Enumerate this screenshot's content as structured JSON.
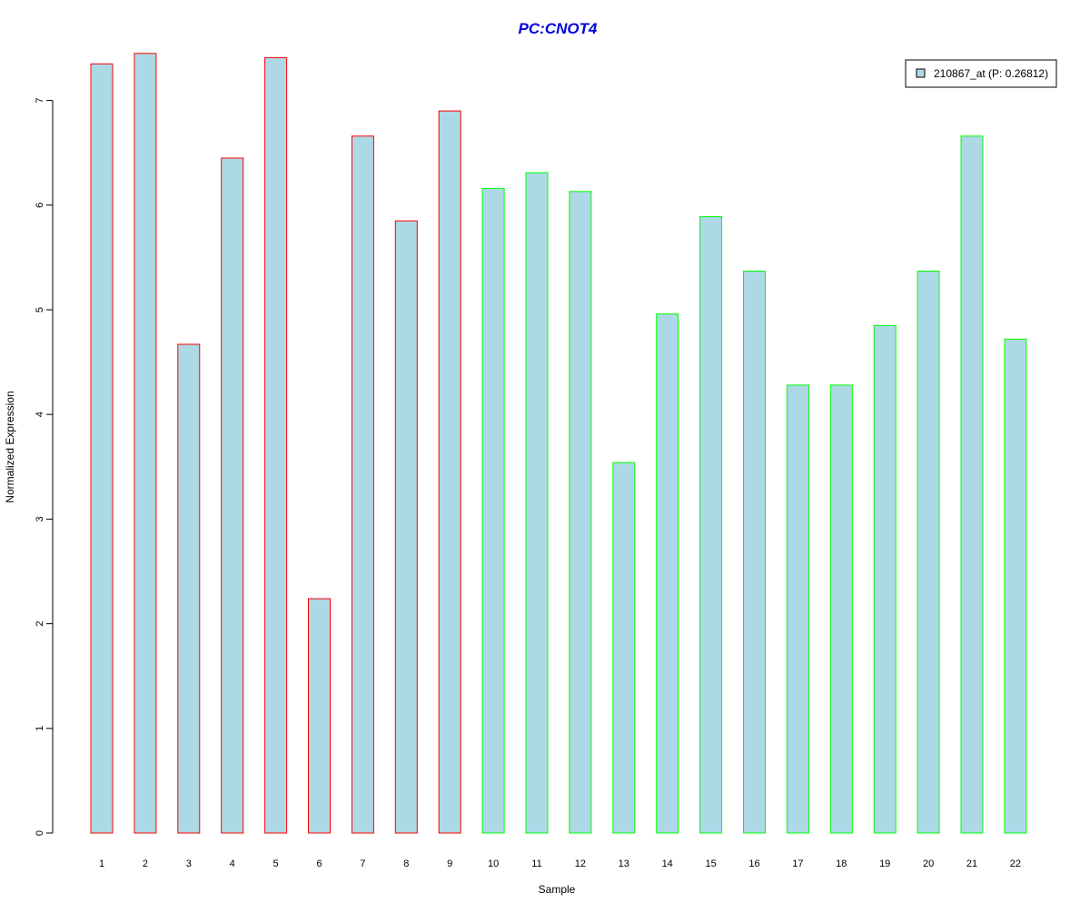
{
  "chart_data": {
    "type": "bar",
    "title": "PC:CNOT4",
    "title_color": "#0000dd",
    "xlabel": "Sample",
    "ylabel": "Normalized Expression",
    "categories": [
      "1",
      "2",
      "3",
      "4",
      "5",
      "6",
      "7",
      "8",
      "9",
      "10",
      "11",
      "12",
      "13",
      "14",
      "15",
      "16",
      "17",
      "18",
      "19",
      "20",
      "21",
      "22"
    ],
    "series": [
      {
        "name": "210867_at (P: 0.26812)",
        "values": [
          7.35,
          7.45,
          4.67,
          6.45,
          7.41,
          2.24,
          6.66,
          5.85,
          6.9,
          6.16,
          6.31,
          6.13,
          3.54,
          4.96,
          5.89,
          5.37,
          4.28,
          4.28,
          4.85,
          5.37,
          6.66,
          4.72
        ],
        "fill": "#add8e6",
        "outline_colors": [
          "#ff0000",
          "#ff0000",
          "#ff0000",
          "#ff0000",
          "#ff0000",
          "#ff0000",
          "#ff0000",
          "#ff0000",
          "#ff0000",
          "#00ff00",
          "#00ff00",
          "#00ff00",
          "#00ff00",
          "#00ff00",
          "#00ff00",
          "#00ff00",
          "#00ff00",
          "#00ff00",
          "#00ff00",
          "#00ff00",
          "#00ff00",
          "#00ff00"
        ]
      }
    ],
    "yticks": [
      0,
      1,
      2,
      3,
      4,
      5,
      6,
      7
    ],
    "ylim": [
      0,
      7.5
    ],
    "grid": false,
    "legend_position": "top-right"
  }
}
